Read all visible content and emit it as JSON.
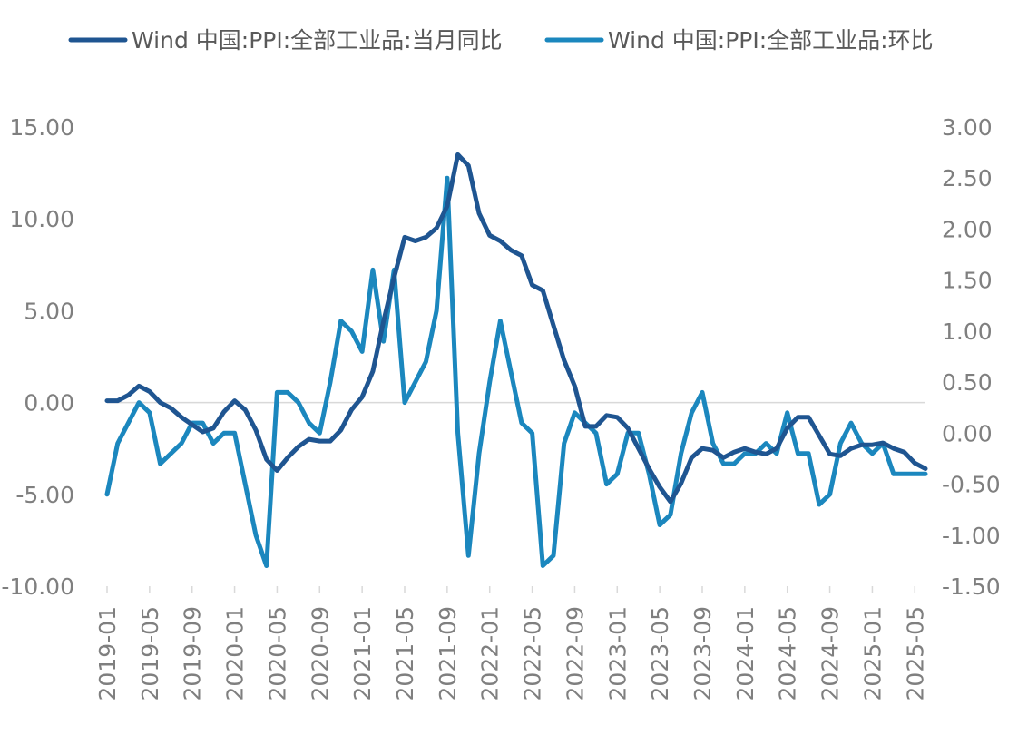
{
  "chart_data": {
    "type": "line",
    "x_tick_labels": [
      "2019-01",
      "2019-05",
      "2019-09",
      "2020-01",
      "2020-05",
      "2020-09",
      "2021-01",
      "2021-05",
      "2021-09",
      "2022-01",
      "2022-05",
      "2022-09",
      "2023-01",
      "2023-05",
      "2023-09",
      "2024-01",
      "2024-05",
      "2024-09",
      "2025-01",
      "2025-05"
    ],
    "x_start": "2019-01",
    "x_end": "2025-06",
    "left_axis": {
      "ylim": [
        -10,
        15
      ],
      "ticks": [
        "15.00",
        "10.00",
        "5.00",
        "0.00",
        "-5.00",
        "-10.00"
      ]
    },
    "right_axis": {
      "ylim": [
        -1.5,
        3.0
      ],
      "ticks": [
        "3.00",
        "2.50",
        "2.00",
        "1.50",
        "1.00",
        "0.50",
        "0.00",
        "-0.50",
        "-1.00",
        "-1.50"
      ]
    },
    "grid": false,
    "legend_position": "top",
    "series": [
      {
        "name": "Wind 中国:PPI:全部工业品:当月同比",
        "axis": "left",
        "color": "#1f5591",
        "values": [
          0.1,
          0.1,
          0.4,
          0.9,
          0.6,
          0.0,
          -0.3,
          -0.8,
          -1.2,
          -1.6,
          -1.4,
          -0.5,
          0.1,
          -0.4,
          -1.5,
          -3.1,
          -3.7,
          -3.0,
          -2.4,
          -2.0,
          -2.1,
          -2.1,
          -1.5,
          -0.4,
          0.3,
          1.7,
          4.4,
          6.8,
          9.0,
          8.8,
          9.0,
          9.5,
          10.7,
          13.5,
          12.9,
          10.3,
          9.1,
          8.8,
          8.3,
          8.0,
          6.4,
          6.1,
          4.2,
          2.3,
          0.9,
          -1.3,
          -1.3,
          -0.7,
          -0.8,
          -1.4,
          -2.5,
          -3.6,
          -4.6,
          -5.4,
          -4.4,
          -3.0,
          -2.5,
          -2.6,
          -3.0,
          -2.7,
          -2.5,
          -2.7,
          -2.8,
          -2.5,
          -1.4,
          -0.8,
          -0.8,
          -1.8,
          -2.8,
          -2.9,
          -2.5,
          -2.3,
          -2.3,
          -2.2,
          -2.5,
          -2.7,
          -3.3,
          -3.6
        ]
      },
      {
        "name": "Wind 中国:PPI:全部工业品:环比",
        "axis": "right",
        "color": "#1b87be",
        "values": [
          -0.6,
          -0.1,
          0.1,
          0.3,
          0.2,
          -0.3,
          -0.2,
          -0.1,
          0.1,
          0.1,
          -0.1,
          0.0,
          0.0,
          -0.5,
          -1.0,
          -1.3,
          0.4,
          0.4,
          0.3,
          0.1,
          0.0,
          0.5,
          1.1,
          1.0,
          0.8,
          1.6,
          0.9,
          1.6,
          0.3,
          0.5,
          0.7,
          1.2,
          2.5,
          0.0,
          -1.2,
          -0.2,
          0.5,
          1.1,
          0.6,
          0.1,
          0.0,
          -1.3,
          -1.2,
          -0.1,
          0.2,
          0.1,
          0.0,
          -0.5,
          -0.4,
          0.0,
          0.0,
          -0.4,
          -0.9,
          -0.8,
          -0.2,
          0.2,
          0.4,
          -0.1,
          -0.3,
          -0.3,
          -0.2,
          -0.2,
          -0.1,
          -0.2,
          0.2,
          -0.2,
          -0.2,
          -0.7,
          -0.6,
          -0.1,
          0.1,
          -0.1,
          -0.2,
          -0.1,
          -0.4,
          -0.4,
          -0.4,
          -0.4
        ]
      }
    ]
  }
}
